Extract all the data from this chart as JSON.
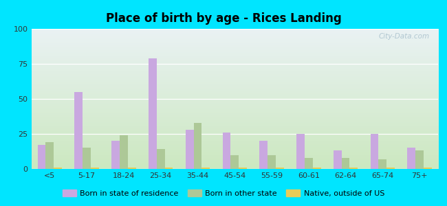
{
  "title": "Place of birth by age - Rices Landing",
  "categories": [
    "<5",
    "5-17",
    "18-24",
    "25-34",
    "35-44",
    "45-54",
    "55-59",
    "60-61",
    "62-64",
    "65-74",
    "75+"
  ],
  "born_in_state": [
    17,
    55,
    20,
    79,
    28,
    26,
    20,
    25,
    13,
    25,
    15
  ],
  "born_other_state": [
    19,
    15,
    24,
    14,
    33,
    10,
    10,
    8,
    8,
    7,
    13
  ],
  "native_outside_us": [
    1,
    1,
    1,
    1,
    1,
    1,
    1,
    1,
    1,
    1,
    1
  ],
  "bar_color_state": "#c9a8e0",
  "bar_color_other": "#adc897",
  "bar_color_native": "#e8cc58",
  "background_outer": "#00e5ff",
  "background_inner_top": "#eaf2f4",
  "background_inner_bottom": "#cce8c0",
  "ylim": [
    0,
    100
  ],
  "yticks": [
    0,
    25,
    50,
    75,
    100
  ],
  "legend_labels": [
    "Born in state of residence",
    "Born in other state",
    "Native, outside of US"
  ],
  "title_fontsize": 12,
  "tick_fontsize": 8,
  "bar_width": 0.22
}
